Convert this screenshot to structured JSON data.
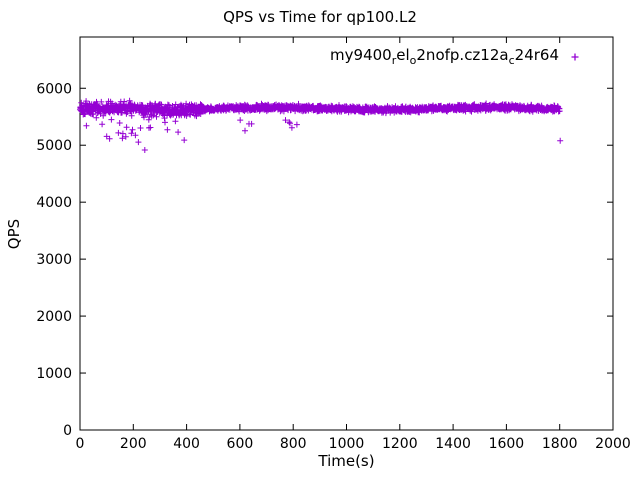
{
  "page": {
    "background": "#ffffff",
    "foreground": "#000000"
  },
  "chart_data": {
    "type": "scatter",
    "title": "QPS vs Time for qp100.L2",
    "xlabel": "Time(s)",
    "ylabel": "QPS",
    "xlim": [
      0,
      2000
    ],
    "ylim": [
      0,
      6900
    ],
    "xticks": [
      0,
      200,
      400,
      600,
      800,
      1000,
      1200,
      1400,
      1600,
      1800,
      2000
    ],
    "yticks": [
      0,
      1000,
      2000,
      3000,
      4000,
      5000,
      6000
    ],
    "ytick_label_max": 6000,
    "grid": false,
    "legend_position": "top-right-inside",
    "border": true,
    "marker": "plus",
    "series": [
      {
        "name": "my9400relo2nofp.cz12ac24r64",
        "name_plain": "my9400_rel_o2nofp.cz12a_c24r64",
        "name_segments": [
          {
            "t": "my9400",
            "sub": false
          },
          {
            "t": "r",
            "sub": true
          },
          {
            "t": "el",
            "sub": false
          },
          {
            "t": "o",
            "sub": true
          },
          {
            "t": "2nofp.cz12a",
            "sub": false
          },
          {
            "t": "c",
            "sub": true
          },
          {
            "t": "24r64",
            "sub": false
          }
        ],
        "color": "#9400D3",
        "marker": "plus",
        "summary": "Dense steady band around 5550-5750 QPS from 0 to 1800 s; noisier start with scattered dips to 5050-5450 before ~460 s, brief dips near 620 s and 760-840 s, and one low point ~5080 QPS at ~1800 s",
        "band_center": 5650,
        "band_halfwidth": 100,
        "generation": {
          "seed": 1337,
          "t_start": 0,
          "t_end": 1800,
          "t_step": 1,
          "baseline": 5645,
          "baseline_wobble_amp": 18,
          "baseline_wobble_period": 820,
          "baseline_wobble_phase": 300,
          "early_until": 460,
          "sigma_early": 55,
          "sigma_late": 26,
          "dip_windows": [
            {
              "from": 10,
              "to": 460,
              "prob": 0.055,
              "min_drop": 140,
              "max_drop": 580
            },
            {
              "from": 600,
              "to": 660,
              "prob": 0.05,
              "min_drop": 200,
              "max_drop": 380
            },
            {
              "from": 755,
              "to": 845,
              "prob": 0.06,
              "min_drop": 180,
              "max_drop": 330
            }
          ],
          "outliers": [
            [
              1802,
              5080
            ]
          ]
        }
      }
    ]
  }
}
